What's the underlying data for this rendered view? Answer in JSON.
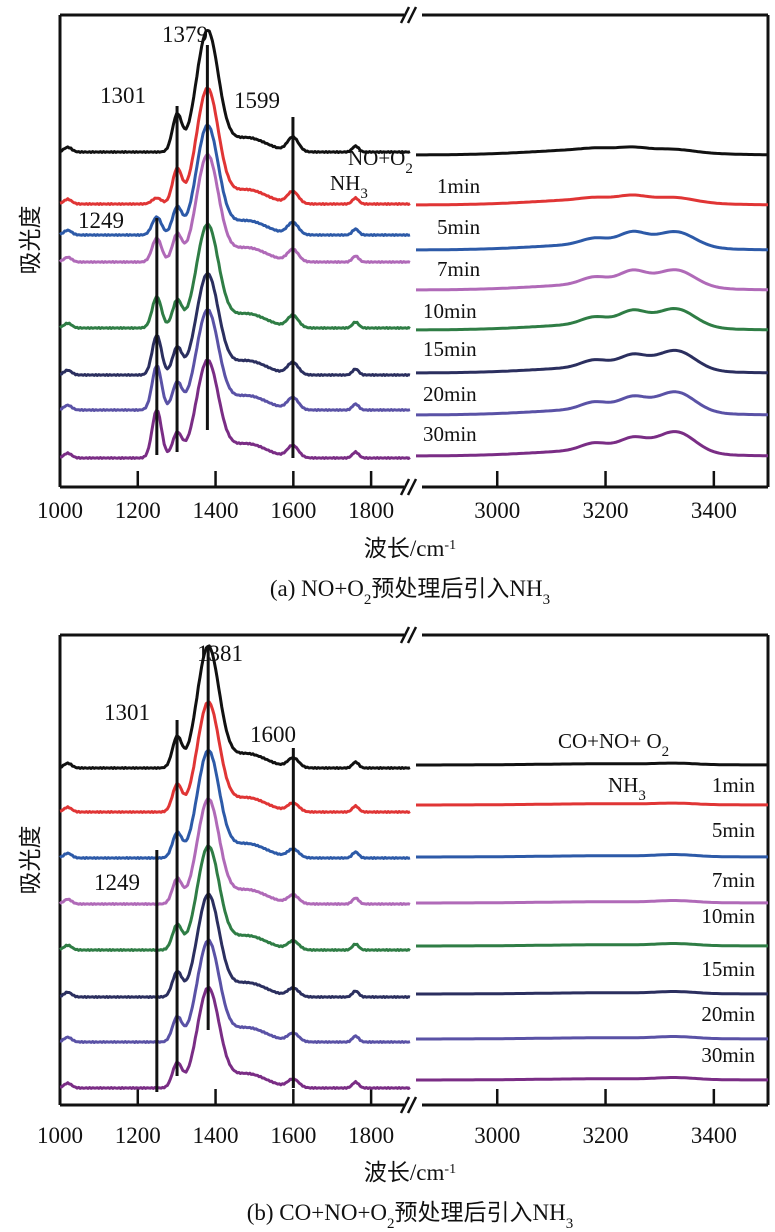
{
  "chart_data": [
    {
      "type": "line",
      "panel": "a",
      "title": "",
      "caption": {
        "prefix": "(a) NO+O",
        "sub": "2",
        "rest": "预处理后引入NH",
        "sub2": "3"
      },
      "xlabel": {
        "main": "波长/cm",
        "sup": "-1"
      },
      "ylabel": "吸光度",
      "xlim_left": [
        1000,
        1900
      ],
      "xlim_right": [
        2850,
        3500
      ],
      "axis_break": true,
      "xticks_left": [
        1000,
        1200,
        1400,
        1600,
        1800
      ],
      "xticks_right": [
        3000,
        3200,
        3400
      ],
      "grid": false,
      "peak_lines": [
        {
          "x": 1249,
          "label": "1249"
        },
        {
          "x": 1301,
          "label": "1301"
        },
        {
          "x": 1379,
          "label": "1379"
        },
        {
          "x": 1599,
          "label": "1599"
        }
      ],
      "annotations": [
        {
          "text": "NO+O",
          "sub": "2",
          "near": "black trace, right of break"
        },
        {
          "text": "NH",
          "sub": "3",
          "near": "red trace"
        }
      ],
      "series": [
        {
          "name": "NO+O2",
          "label": "",
          "color": "#111111",
          "peaks": {
            "1249": 0.0,
            "1301": 0.3,
            "1379": 1.0,
            "1599": 0.12
          },
          "high": {
            "3180": 0.02,
            "3250": 0.04,
            "3330": 0.04
          }
        },
        {
          "name": "1min",
          "label": "1min",
          "color": "#e03535",
          "peaks": {
            "1249": 0.05,
            "1301": 0.28,
            "1379": 0.95,
            "1599": 0.1
          },
          "high": {
            "3180": 0.03,
            "3250": 0.07,
            "3330": 0.07
          }
        },
        {
          "name": "5min",
          "label": "5min",
          "color": "#2d5aa8",
          "peaks": {
            "1249": 0.15,
            "1301": 0.22,
            "1379": 0.9,
            "1599": 0.1
          },
          "high": {
            "3180": 0.1,
            "3250": 0.2,
            "3330": 0.25
          }
        },
        {
          "name": "7min",
          "label": "7min",
          "color": "#b06ab8",
          "peaks": {
            "1249": 0.2,
            "1301": 0.22,
            "1379": 0.88,
            "1599": 0.1
          },
          "high": {
            "3180": 0.12,
            "3250": 0.22,
            "3330": 0.28
          }
        },
        {
          "name": "10min",
          "label": "10min",
          "color": "#2f7d45",
          "peaks": {
            "1249": 0.26,
            "1301": 0.22,
            "1379": 0.85,
            "1599": 0.1
          },
          "high": {
            "3180": 0.12,
            "3250": 0.22,
            "3330": 0.3
          }
        },
        {
          "name": "15min",
          "label": "15min",
          "color": "#2b2f5f",
          "peaks": {
            "1249": 0.33,
            "1301": 0.22,
            "1379": 0.83,
            "1599": 0.1
          },
          "high": {
            "3180": 0.12,
            "3250": 0.2,
            "3330": 0.32
          }
        },
        {
          "name": "20min",
          "label": "20min",
          "color": "#5a52a6",
          "peaks": {
            "1249": 0.37,
            "1301": 0.22,
            "1379": 0.82,
            "1599": 0.1
          },
          "high": {
            "3180": 0.12,
            "3250": 0.2,
            "3330": 0.33
          }
        },
        {
          "name": "30min",
          "label": "30min",
          "color": "#7a2d85",
          "peaks": {
            "1249": 0.4,
            "1301": 0.2,
            "1379": 0.8,
            "1599": 0.1
          },
          "high": {
            "3180": 0.12,
            "3250": 0.2,
            "3330": 0.35
          }
        }
      ]
    },
    {
      "type": "line",
      "panel": "b",
      "title": "",
      "caption": {
        "prefix": "(b) CO+NO+O",
        "sub": "2",
        "rest": "预处理后引入NH",
        "sub2": "3"
      },
      "xlabel": {
        "main": "波长/cm",
        "sup": "-1"
      },
      "ylabel": "吸光度",
      "xlim_left": [
        1000,
        1900
      ],
      "xlim_right": [
        2850,
        3500
      ],
      "axis_break": true,
      "xticks_left": [
        1000,
        1200,
        1400,
        1600,
        1800
      ],
      "xticks_right": [
        3000,
        3200,
        3400
      ],
      "grid": false,
      "peak_lines": [
        {
          "x": 1249,
          "label": "1249"
        },
        {
          "x": 1301,
          "label": "1301"
        },
        {
          "x": 1381,
          "label": "1381"
        },
        {
          "x": 1600,
          "label": "1600"
        }
      ],
      "annotations": [
        {
          "text": "CO+NO+ O",
          "sub": "2",
          "near": "black trace, right side"
        },
        {
          "text": "NH",
          "sub": "3",
          "near": "red trace, right side"
        }
      ],
      "series": [
        {
          "name": "CO+NO+O2",
          "label": "",
          "color": "#111111",
          "peaks": {
            "1301": 0.25,
            "1381": 1.0,
            "1600": 0.08
          },
          "high": {
            "3330": 0.02
          }
        },
        {
          "name": "1min",
          "label": "1min",
          "color": "#e03535",
          "peaks": {
            "1301": 0.22,
            "1381": 0.9,
            "1600": 0.07
          },
          "high": {
            "3330": 0.02
          }
        },
        {
          "name": "5min",
          "label": "5min",
          "color": "#2d5aa8",
          "peaks": {
            "1301": 0.2,
            "1381": 0.88,
            "1600": 0.07
          },
          "high": {
            "3330": 0.03
          }
        },
        {
          "name": "7min",
          "label": "7min",
          "color": "#b06ab8",
          "peaks": {
            "1301": 0.2,
            "1381": 0.86,
            "1600": 0.07
          },
          "high": {
            "3330": 0.03
          }
        },
        {
          "name": "10min",
          "label": "10min",
          "color": "#2f7d45",
          "peaks": {
            "1301": 0.2,
            "1381": 0.85,
            "1600": 0.07
          },
          "high": {
            "3330": 0.03
          }
        },
        {
          "name": "15min",
          "label": "15min",
          "color": "#2b2f5f",
          "peaks": {
            "1301": 0.2,
            "1381": 0.84,
            "1600": 0.07
          },
          "high": {
            "3330": 0.03
          }
        },
        {
          "name": "20min",
          "label": "20min",
          "color": "#5a52a6",
          "peaks": {
            "1301": 0.2,
            "1381": 0.83,
            "1600": 0.07
          },
          "high": {
            "3330": 0.03
          }
        },
        {
          "name": "30min",
          "label": "30min",
          "color": "#7a2d85",
          "peaks": {
            "1301": 0.2,
            "1381": 0.82,
            "1600": 0.07
          },
          "high": {
            "3330": 0.03
          }
        }
      ]
    }
  ]
}
